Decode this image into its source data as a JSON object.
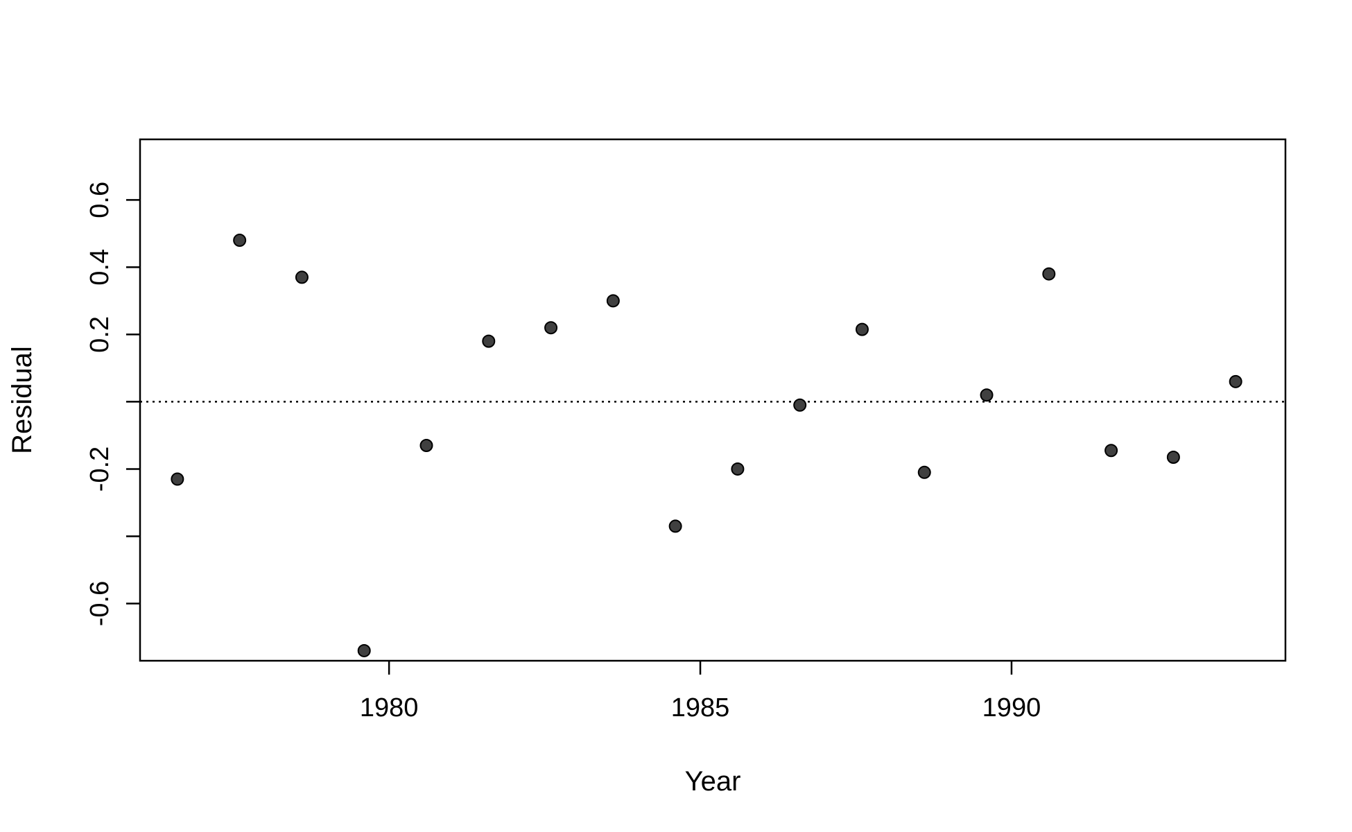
{
  "chart_data": {
    "type": "scatter",
    "title": "",
    "xlabel": "Year",
    "ylabel": "Residual",
    "xlim": [
      1976,
      1994.4
    ],
    "ylim": [
      -0.77,
      0.78
    ],
    "x_ticks": [
      1980,
      1985,
      1990
    ],
    "x_tick_labels": [
      "1980",
      "1985",
      "1990"
    ],
    "y_ticks": [
      -0.6,
      -0.4,
      -0.2,
      0.0,
      0.2,
      0.4,
      0.6
    ],
    "y_tick_labels": [
      "-0.6",
      "",
      "-0.2",
      "",
      "0.2",
      "0.4",
      "0.6"
    ],
    "reference_line": {
      "y": 0,
      "style": "dotted"
    },
    "grid": false,
    "box": true,
    "marker_color": "#404040",
    "series": [
      {
        "x": [
          1976.6,
          1977.6,
          1978.6,
          1979.6,
          1980.6,
          1981.6,
          1982.6,
          1983.6,
          1984.6,
          1985.6,
          1986.6,
          1987.6,
          1988.6,
          1989.6,
          1990.6,
          1991.6,
          1992.6,
          1993.6
        ],
        "y": [
          -0.23,
          0.48,
          0.37,
          -0.74,
          -0.13,
          0.18,
          0.22,
          0.3,
          -0.37,
          -0.2,
          -0.01,
          0.215,
          -0.21,
          0.02,
          0.38,
          -0.145,
          -0.165,
          0.06
        ]
      }
    ]
  }
}
